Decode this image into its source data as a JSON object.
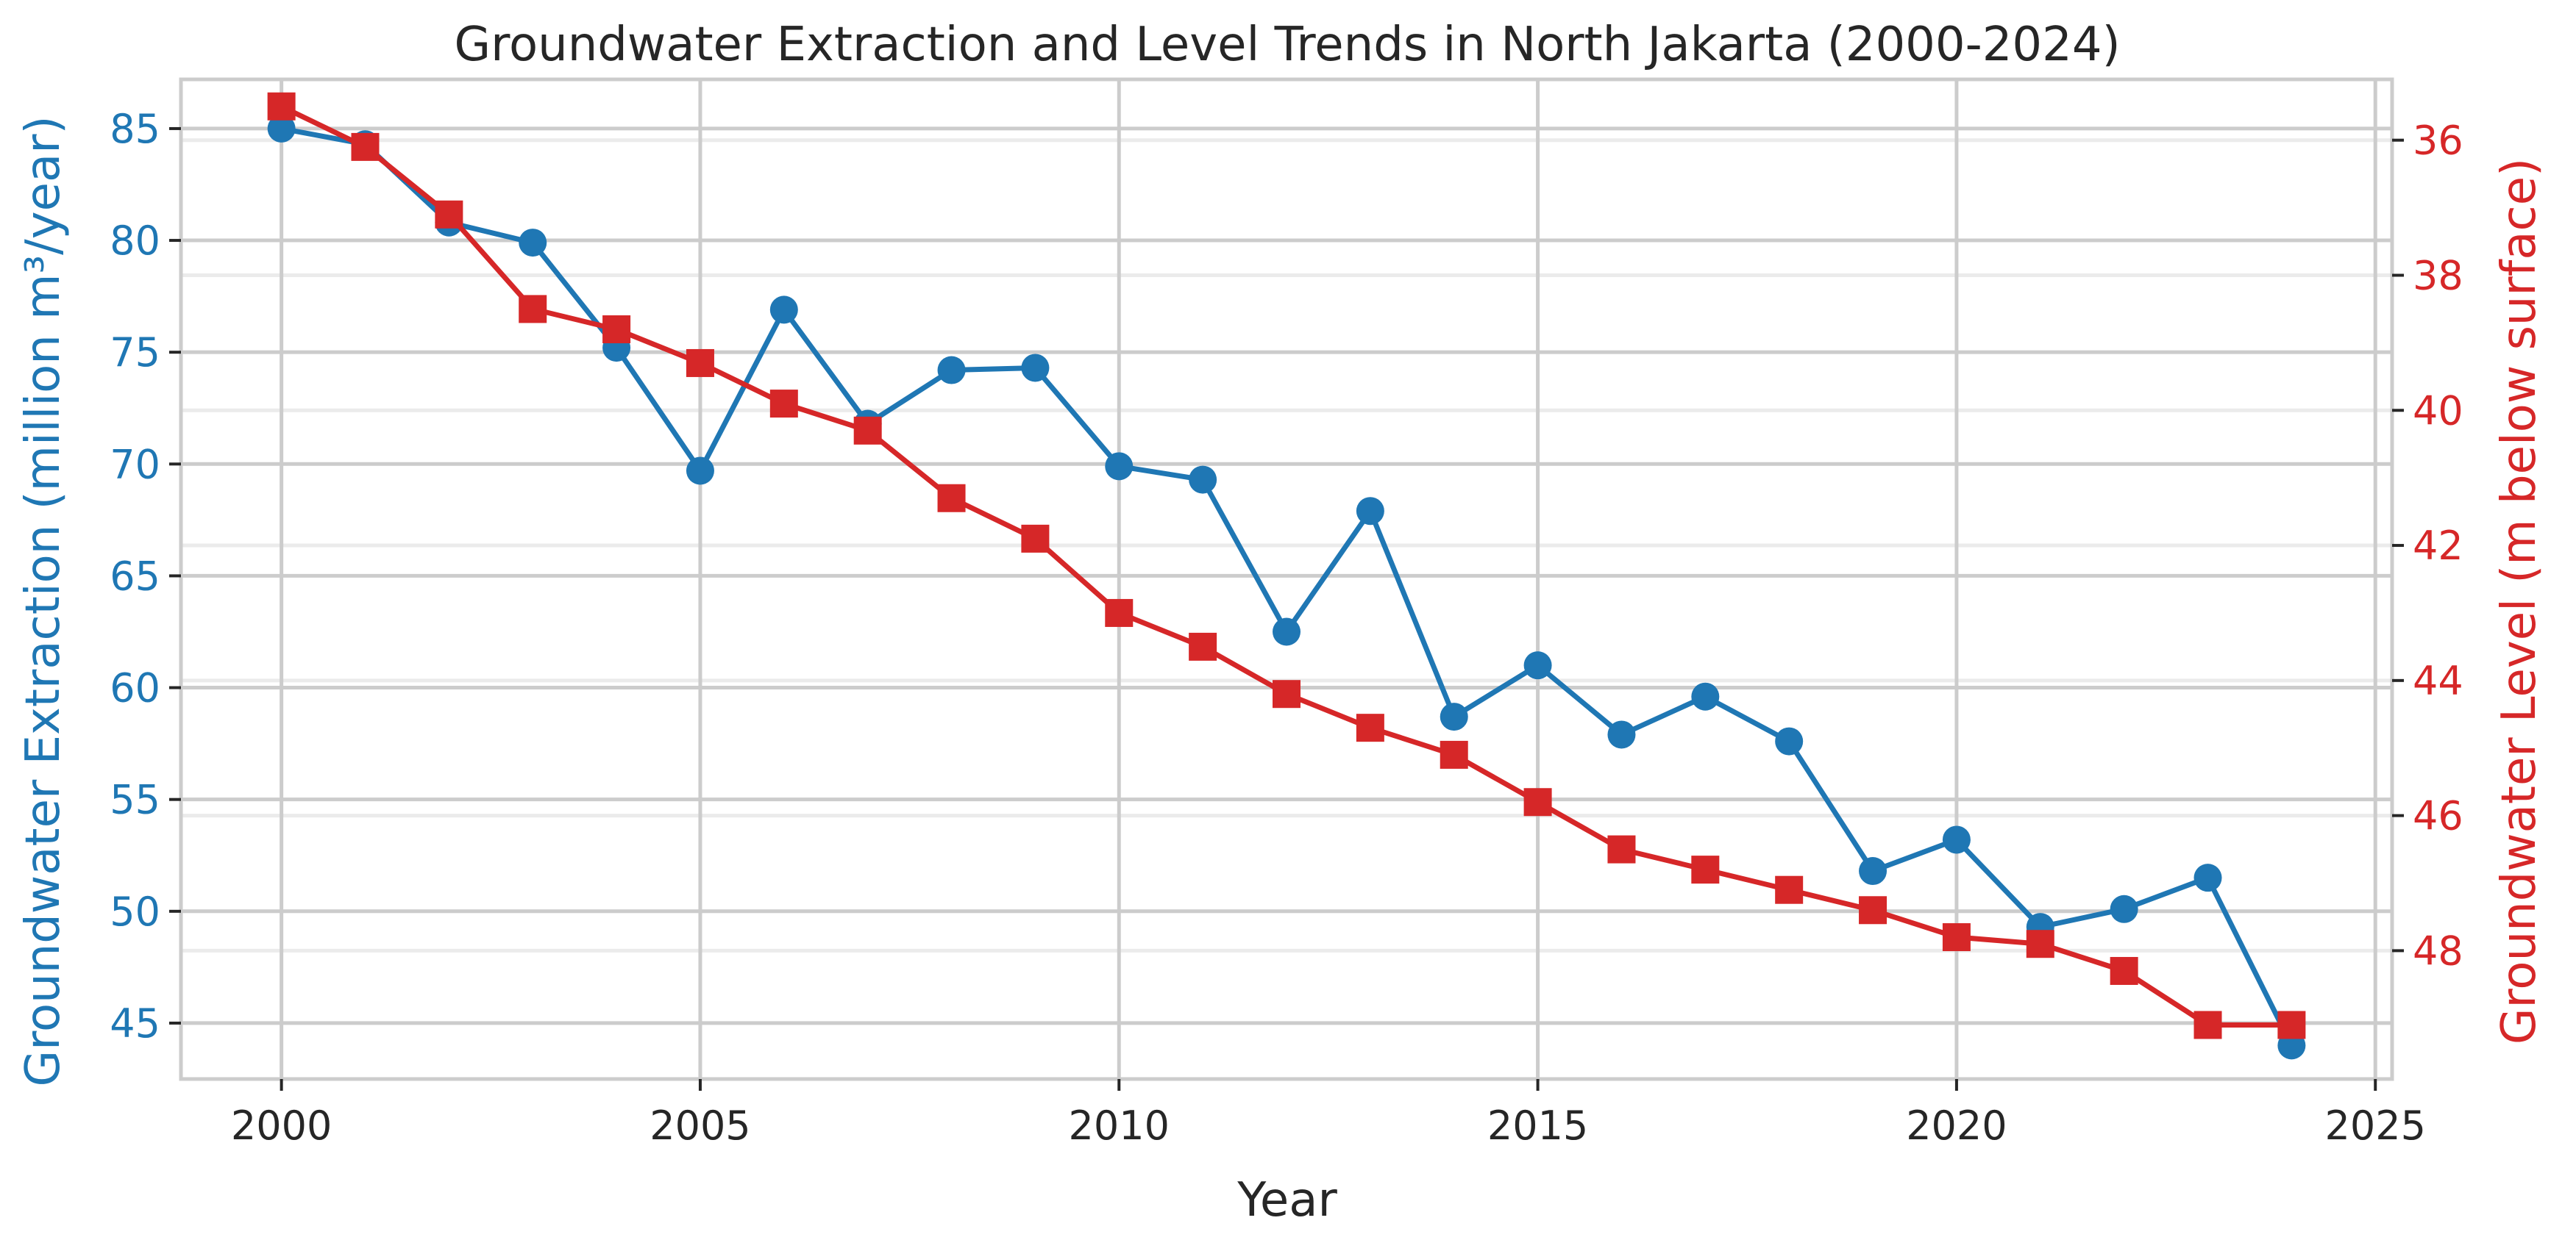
{
  "chart_data": {
    "type": "line",
    "title": "Groundwater Extraction and Level Trends in North Jakarta (2000-2024)",
    "xlabel": "Year",
    "ylabel_left": "Groundwater Extraction (million m³/year)",
    "ylabel_right": "Groundwater Level (m below surface)",
    "xlim": [
      1998.8,
      2025.2
    ],
    "ylim_left": [
      42.5,
      87.2
    ],
    "ylim_right": [
      35.1,
      49.9
    ],
    "right_axis_inverted": true,
    "x_ticks": [
      2000,
      2005,
      2010,
      2015,
      2020,
      2025
    ],
    "y_left_ticks": [
      45,
      50,
      55,
      60,
      65,
      70,
      75,
      80,
      85
    ],
    "y_right_ticks": [
      36,
      38,
      40,
      42,
      44,
      46,
      48
    ],
    "grid": true,
    "colors": {
      "extraction": "#1f77b4",
      "level": "#d62728",
      "grid": "#cccccc",
      "grid_minor": "#ebebeb",
      "axis": "#cccccc",
      "text": "#262626"
    },
    "x": [
      2000,
      2001,
      2002,
      2003,
      2004,
      2005,
      2006,
      2007,
      2008,
      2009,
      2010,
      2011,
      2012,
      2013,
      2014,
      2015,
      2016,
      2017,
      2018,
      2019,
      2020,
      2021,
      2022,
      2023,
      2024
    ],
    "series": [
      {
        "key": "extraction",
        "axis": "left",
        "marker": "circle",
        "values": [
          85.0,
          84.3,
          80.8,
          79.9,
          75.2,
          69.7,
          76.9,
          71.8,
          74.2,
          74.3,
          69.9,
          69.3,
          62.5,
          67.9,
          58.7,
          61.0,
          57.9,
          59.6,
          57.6,
          51.8,
          53.2,
          49.3,
          50.1,
          51.5,
          44.0
        ]
      },
      {
        "key": "level",
        "axis": "right",
        "marker": "square",
        "values": [
          35.5,
          36.1,
          37.1,
          38.5,
          38.8,
          39.3,
          39.9,
          40.3,
          41.3,
          41.9,
          43.0,
          43.5,
          44.2,
          44.7,
          45.1,
          45.8,
          46.5,
          46.8,
          47.1,
          47.4,
          47.8,
          47.9,
          48.3,
          49.1,
          49.1
        ]
      }
    ]
  }
}
